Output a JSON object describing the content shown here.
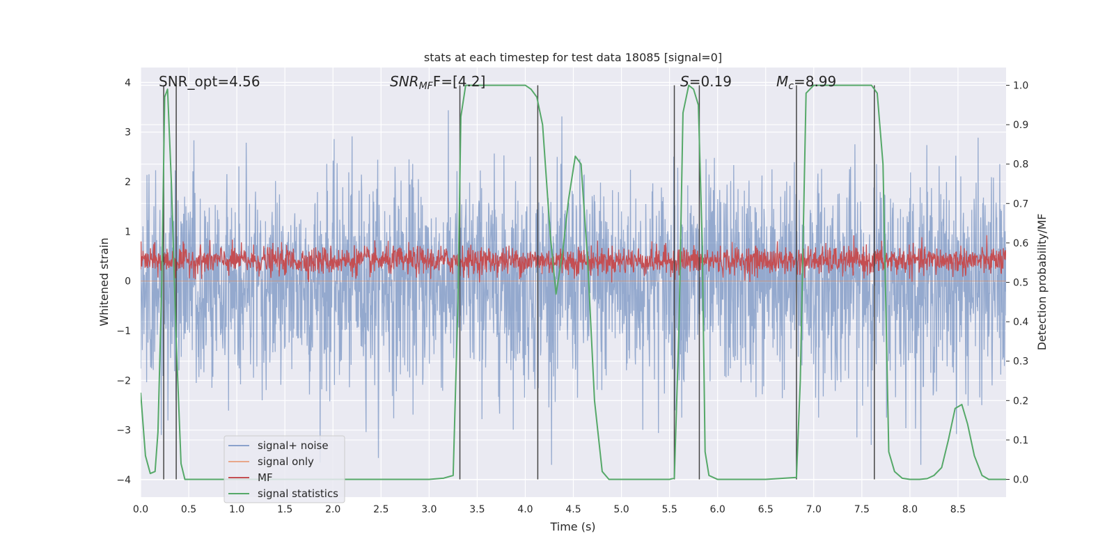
{
  "chart_data": {
    "type": "line",
    "title": "stats at each timestep for test data 18085 [signal=0]",
    "xlabel": "Time (s)",
    "ylabel_left": "Whitened strain",
    "ylabel_right": "Detection probability/MF",
    "xlim": [
      0.0,
      9.0
    ],
    "ylim_left": [
      -4.35,
      4.3
    ],
    "ylim_right": [
      -0.045,
      1.045
    ],
    "x_ticks": [
      "0.0",
      "0.5",
      "1.0",
      "1.5",
      "2.0",
      "2.5",
      "3.0",
      "3.5",
      "4.0",
      "4.5",
      "5.0",
      "5.5",
      "6.0",
      "6.5",
      "7.0",
      "7.5",
      "8.0",
      "8.5"
    ],
    "y_ticks_left": [
      "4",
      "3",
      "2",
      "1",
      "0",
      "−1",
      "−2",
      "−3",
      "−4"
    ],
    "y_ticks_right": [
      "1.0",
      "0.9",
      "0.8",
      "0.7",
      "0.6",
      "0.5",
      "0.4",
      "0.3",
      "0.2",
      "0.1",
      "0.0"
    ],
    "grid": true,
    "legend_position": "lower-left",
    "annotations": {
      "snr_opt": "SNR_opt=4.56",
      "snr_mf_main": "SNR",
      "snr_mf_sub": "MF",
      "snr_mf_rest": "F=[4.2]",
      "s_italic": "S",
      "s_rest": "=0.19",
      "mc_main": "M",
      "mc_sub": "c",
      "mc_rest": "=8.99"
    },
    "detection_markers_x": [
      0.24,
      0.37,
      3.32,
      4.13,
      5.55,
      5.81,
      6.82,
      7.63
    ],
    "series": [
      {
        "name": "signal+ noise",
        "color": "#4c72b0",
        "opacity": 0.55,
        "axis": "left",
        "amplitude_sigma": 1.0,
        "approx_range": [
          -3.7,
          3.9
        ]
      },
      {
        "name": "signal only",
        "color": "#dd8452",
        "axis": "left",
        "constant_value": 0
      },
      {
        "name": "MF",
        "color": "#c44e52",
        "axis": "right",
        "approx_range": [
          0.5,
          0.62
        ],
        "baseline": 0.555
      },
      {
        "name": "signal statistics",
        "color": "#55a868",
        "axis": "right",
        "x": [
          0.0,
          0.05,
          0.1,
          0.15,
          0.18,
          0.22,
          0.25,
          0.28,
          0.32,
          0.37,
          0.42,
          0.46,
          0.5,
          0.7,
          1.0,
          1.5,
          2.0,
          2.5,
          3.0,
          3.15,
          3.25,
          3.3,
          3.33,
          3.38,
          3.42,
          3.5,
          3.8,
          4.0,
          4.06,
          4.12,
          4.18,
          4.26,
          4.32,
          4.39,
          4.45,
          4.52,
          4.58,
          4.65,
          4.72,
          4.8,
          4.87,
          5.0,
          5.5,
          5.55,
          5.6,
          5.64,
          5.7,
          5.75,
          5.8,
          5.84,
          5.87,
          5.91,
          6.0,
          6.5,
          6.82,
          6.86,
          6.92,
          7.0,
          7.3,
          7.6,
          7.66,
          7.72,
          7.78,
          7.84,
          7.92,
          8.0,
          8.1,
          8.18,
          8.25,
          8.33,
          8.4,
          8.47,
          8.54,
          8.6,
          8.67,
          8.75,
          8.82,
          9.0
        ],
        "y": [
          0.22,
          0.06,
          0.015,
          0.02,
          0.12,
          0.5,
          0.97,
          0.99,
          0.75,
          0.35,
          0.04,
          0.0,
          0.0,
          0.0,
          0.0,
          0.0,
          0.0,
          0.0,
          0.0,
          0.003,
          0.01,
          0.45,
          0.92,
          1.0,
          1.0,
          1.0,
          1.0,
          1.0,
          0.99,
          0.97,
          0.9,
          0.62,
          0.47,
          0.58,
          0.71,
          0.82,
          0.8,
          0.55,
          0.2,
          0.02,
          0.0,
          0.0,
          0.0,
          0.003,
          0.4,
          0.93,
          1.0,
          0.99,
          0.95,
          0.6,
          0.07,
          0.01,
          0.0,
          0.0,
          0.005,
          0.25,
          0.98,
          1.0,
          1.0,
          1.0,
          0.98,
          0.8,
          0.07,
          0.02,
          0.003,
          0.0,
          0.0,
          0.002,
          0.01,
          0.03,
          0.1,
          0.18,
          0.19,
          0.14,
          0.06,
          0.01,
          0.0,
          0.0
        ]
      }
    ]
  },
  "legend": {
    "items": [
      {
        "label": "signal+ noise",
        "color": "#8ba2cc"
      },
      {
        "label": "signal only",
        "color": "#e8a78a"
      },
      {
        "label": "MF",
        "color": "#c44e52"
      },
      {
        "label": "signal statistics",
        "color": "#55a868"
      }
    ]
  },
  "colors": {
    "plot_background": "#eaeaf2",
    "grid": "#ffffff",
    "marker_line": "#444444"
  }
}
